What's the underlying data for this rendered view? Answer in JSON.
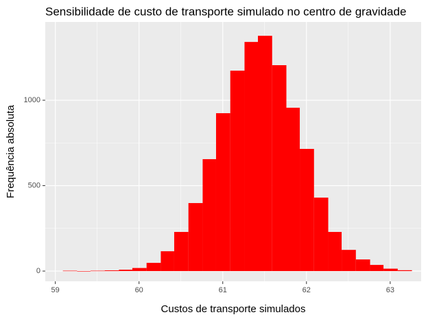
{
  "chart_data": {
    "type": "histogram",
    "title": "Sensibilidade de custo de transporte simulado no centro de gravidade",
    "x_label": "Custos de transporte simulados",
    "y_label": "Frequência absoluta",
    "bins": [
      59.09,
      59.26,
      59.42,
      59.59,
      59.76,
      59.92,
      60.09,
      60.26,
      60.42,
      60.59,
      60.76,
      60.92,
      61.09,
      61.26,
      61.42,
      61.59,
      61.76,
      61.92,
      62.09,
      62.26,
      62.42,
      62.59,
      62.76,
      62.92,
      63.09,
      63.26
    ],
    "values": [
      2,
      0,
      2,
      4,
      8,
      18,
      48,
      116,
      229,
      398,
      655,
      924,
      1173,
      1341,
      1377,
      1205,
      956,
      715,
      430,
      229,
      124,
      68,
      36,
      14,
      5
    ],
    "color": "#ff0000",
    "xlim": [
      58.88,
      63.37
    ],
    "ylim": [
      -60,
      1458
    ],
    "xticks": [
      59,
      60,
      61,
      62,
      63
    ],
    "yticks": [
      0,
      500,
      1000
    ],
    "grid": true,
    "panel_background": "#ebebeb"
  }
}
